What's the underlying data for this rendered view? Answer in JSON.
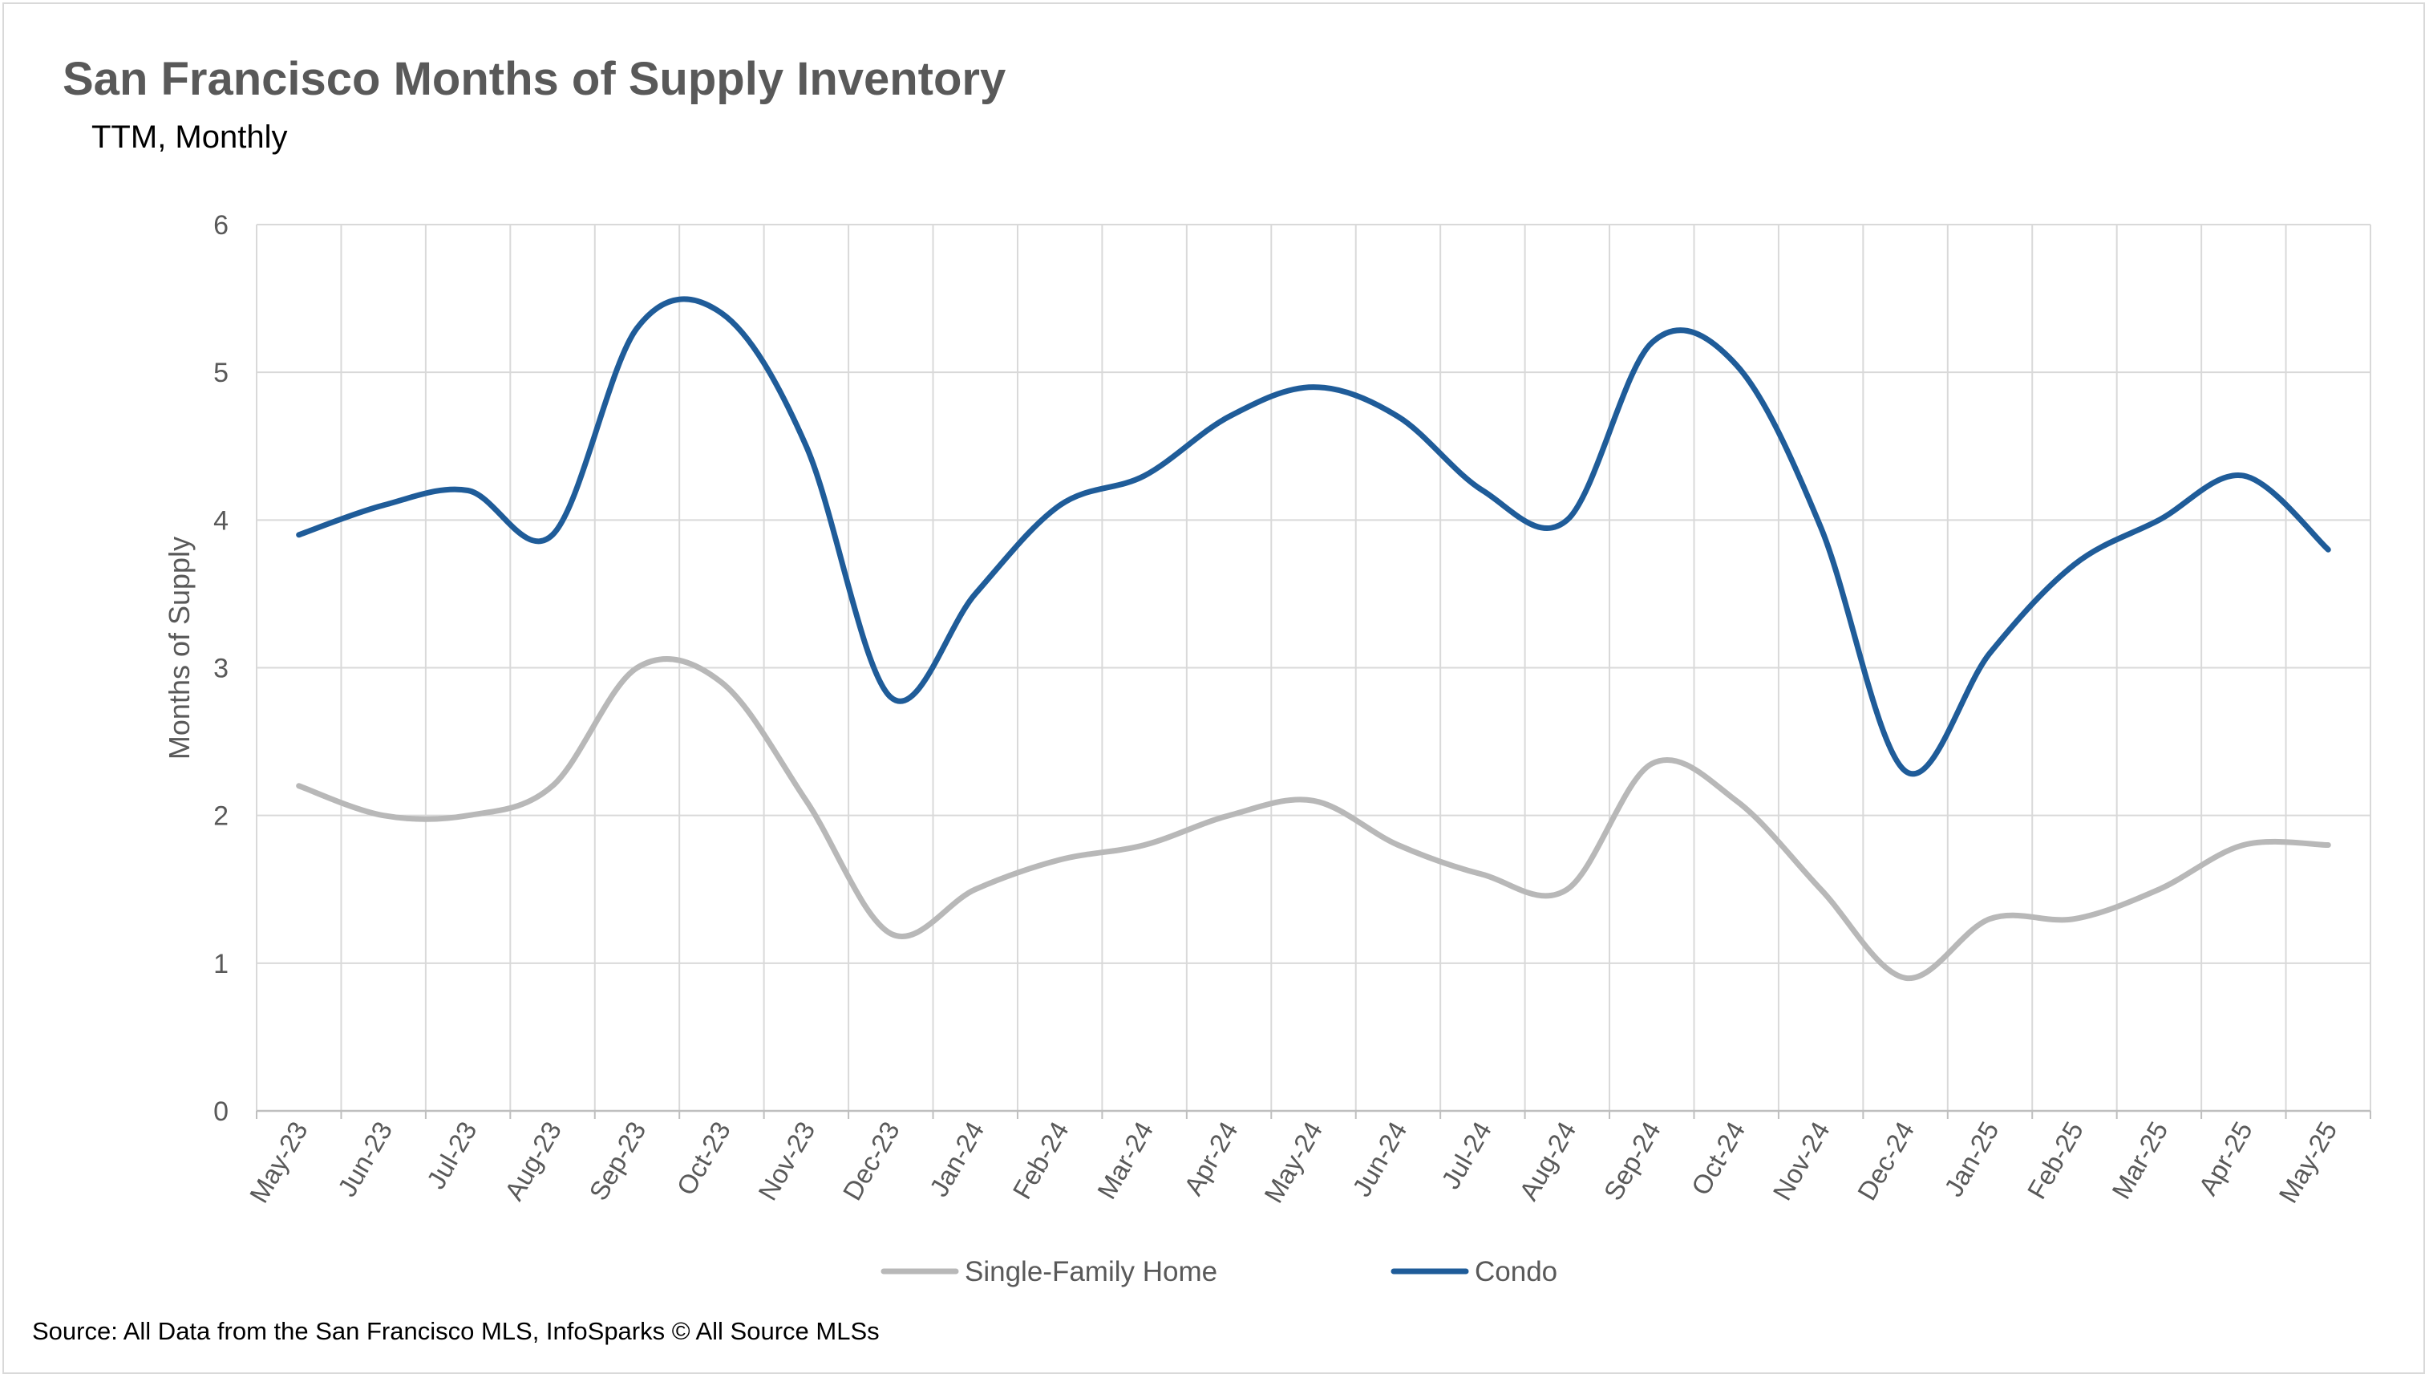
{
  "chart_data": {
    "type": "line",
    "title": "San Francisco Months of Supply Inventory",
    "subtitle": "TTM, Monthly",
    "ylabel": "Months of Supply",
    "xlabel": "",
    "ylim": [
      0,
      6
    ],
    "yticks": [
      "0",
      "1",
      "2",
      "3",
      "4",
      "5",
      "6"
    ],
    "grid": true,
    "legend_position": "bottom",
    "categories": [
      "May-23",
      "Jun-23",
      "Jul-23",
      "Aug-23",
      "Sep-23",
      "Oct-23",
      "Nov-23",
      "Dec-23",
      "Jan-24",
      "Feb-24",
      "Mar-24",
      "Apr-24",
      "May-24",
      "Jun-24",
      "Jul-24",
      "Aug-24",
      "Sep-24",
      "Oct-24",
      "Nov-24",
      "Dec-24",
      "Jan-25",
      "Feb-25",
      "Mar-25",
      "Apr-25",
      "May-25"
    ],
    "series": [
      {
        "name": "Single-Family Home",
        "color": "#b8b8b8",
        "values": [
          2.2,
          2.0,
          2.0,
          2.2,
          3.0,
          2.9,
          2.1,
          1.2,
          1.5,
          1.7,
          1.8,
          2.0,
          2.1,
          1.8,
          1.6,
          1.5,
          2.35,
          2.1,
          1.5,
          0.9,
          1.3,
          1.3,
          1.5,
          1.8,
          1.8
        ]
      },
      {
        "name": "Condo",
        "color": "#1f5c99",
        "values": [
          3.9,
          4.1,
          4.2,
          3.9,
          5.3,
          5.4,
          4.5,
          2.8,
          3.5,
          4.1,
          4.3,
          4.7,
          4.9,
          4.7,
          4.2,
          4.0,
          5.2,
          5.05,
          3.95,
          2.3,
          3.1,
          3.7,
          4.0,
          4.3,
          3.8
        ]
      }
    ]
  },
  "source": "Source: All Data from the San Francisco MLS, InfoSparks © All Source MLSs"
}
